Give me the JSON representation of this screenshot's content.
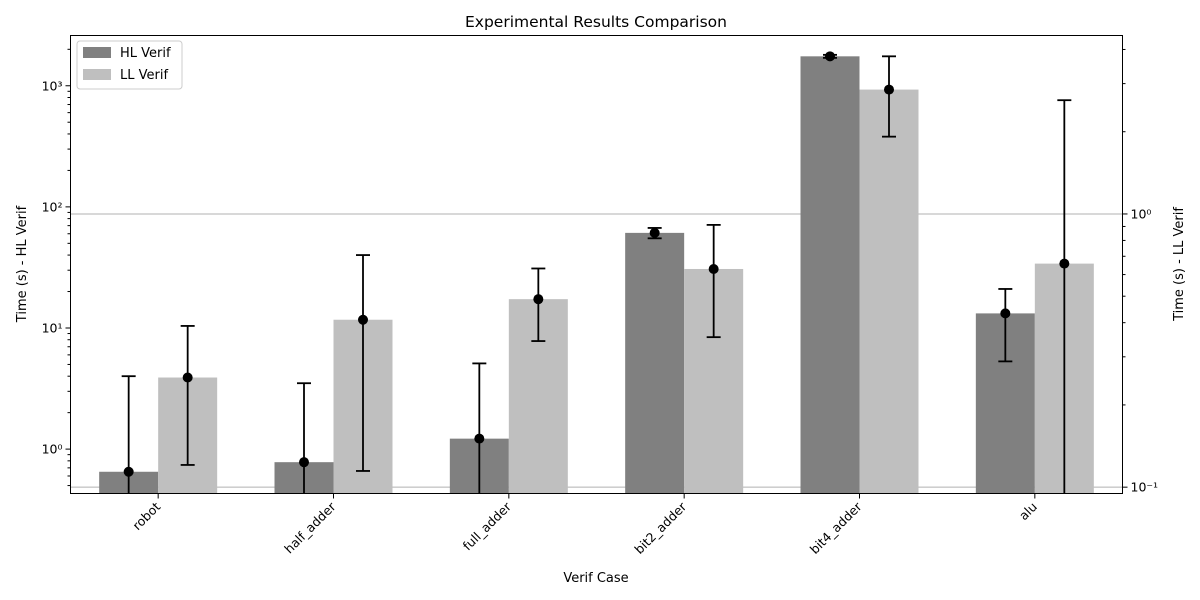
{
  "chart_data": {
    "type": "bar",
    "title": "Experimental Results Comparison",
    "xlabel": "Verif Case",
    "ylabel_left": "Time (s) - HL Verif",
    "ylabel_right": "Time (s) - LL Verif",
    "yscale_left": "log",
    "yscale_right": "log",
    "categories": [
      "robot",
      "half_adder",
      "full_adder",
      "bit2_adder",
      "bit4_adder",
      "alu"
    ],
    "series": [
      {
        "name": "HL Verif",
        "axis": "left",
        "color": "#808080",
        "values": [
          0.65,
          0.78,
          1.22,
          61,
          1750,
          13.2
        ],
        "err_low": [
          0.42,
          0.42,
          0.42,
          55,
          1700,
          5.3
        ],
        "err_high": [
          4.0,
          3.5,
          5.1,
          67,
          1800,
          21
        ]
      },
      {
        "name": "LL Verif",
        "axis": "left",
        "color": "#bfbfbf",
        "values": [
          3.9,
          11.7,
          17.3,
          30.7,
          930,
          34
        ],
        "err_low": [
          0.74,
          0.66,
          7.8,
          8.4,
          380,
          0.42
        ],
        "err_high": [
          10.4,
          40,
          31,
          71,
          1750,
          760
        ]
      }
    ],
    "ylim_left": [
      0.43,
      2600
    ],
    "ylim_right": [
      0.0948,
      4.5
    ],
    "yticks_left": [
      {
        "value": 1,
        "label": "10⁰"
      },
      {
        "value": 10,
        "label": "10¹"
      },
      {
        "value": 100,
        "label": "10²"
      },
      {
        "value": 1000,
        "label": "10³"
      }
    ],
    "yticks_right": [
      {
        "value": 0.1,
        "label": "10⁻¹"
      },
      {
        "value": 1,
        "label": "10⁰"
      }
    ],
    "grid": "right-axis major, horizontal",
    "legend": "top-left"
  }
}
